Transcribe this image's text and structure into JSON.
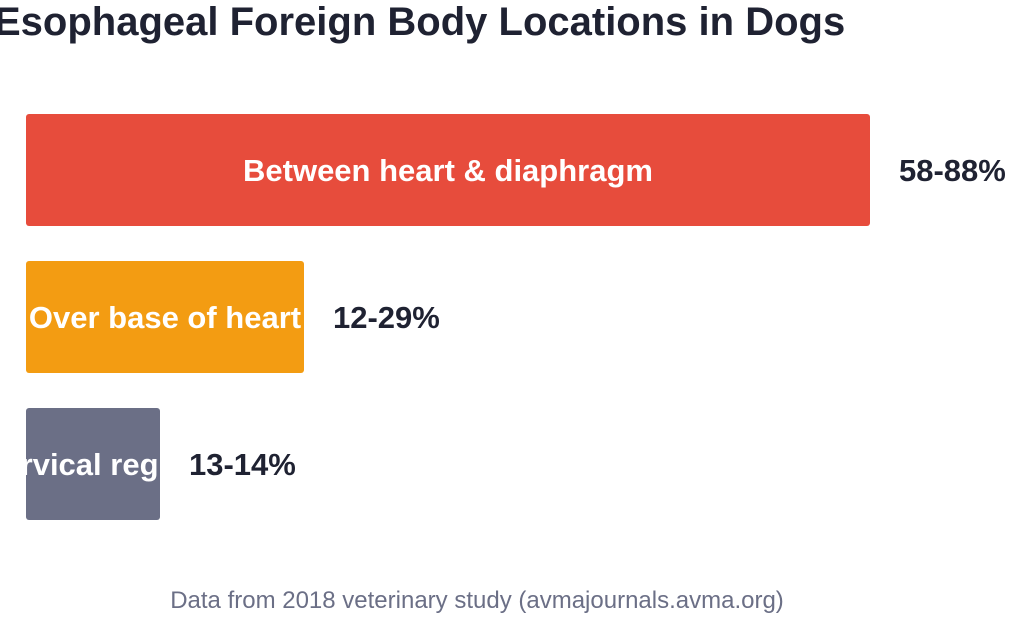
{
  "chart_data": {
    "type": "bar",
    "orientation": "horizontal",
    "title": "Esophageal Foreign Body Locations in Dogs",
    "categories": [
      "Between heart & diaphragm",
      "Over base of heart",
      "Cervical region"
    ],
    "value_labels": [
      "58-88%",
      "12-29%",
      "13-14%"
    ],
    "values": [
      88,
      29,
      14
    ],
    "ranges": [
      [
        58,
        88
      ],
      [
        12,
        29
      ],
      [
        13,
        14
      ]
    ],
    "colors": [
      "#e74c3c",
      "#f39c12",
      "#6b6f86"
    ],
    "xlim": [
      0,
      88
    ],
    "grid": false,
    "legend": "none",
    "footnote": "Data from 2018 veterinary study (avmajournals.avma.org)"
  }
}
